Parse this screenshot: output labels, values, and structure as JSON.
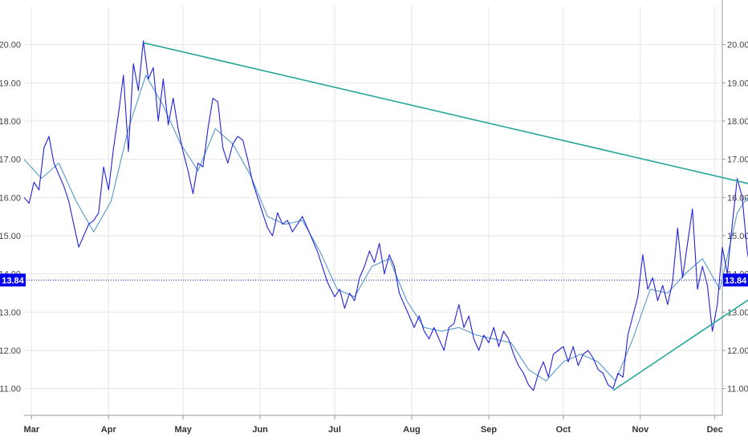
{
  "chart_data": {
    "type": "line",
    "title": "",
    "xlabel": "",
    "ylabel": "",
    "ylim": [
      10.3,
      21.0
    ],
    "xlim": [
      "2019-02-26",
      "2019-12-04"
    ],
    "grid": true,
    "y_ticks": [
      "11.00",
      "12.00",
      "13.00",
      "14.00",
      "15.00",
      "16.00",
      "17.00",
      "18.00",
      "19.00",
      "20.00"
    ],
    "x_ticks": [
      {
        "label": "Mar",
        "date": "2019-03-01"
      },
      {
        "label": "Apr",
        "date": "2019-04-01"
      },
      {
        "label": "May",
        "date": "2019-05-01"
      },
      {
        "label": "Jun",
        "date": "2019-06-01"
      },
      {
        "label": "Jul",
        "date": "2019-07-01"
      },
      {
        "label": "Aug",
        "date": "2019-08-01"
      },
      {
        "label": "Sep",
        "date": "2019-09-01"
      },
      {
        "label": "Oct",
        "date": "2019-10-01"
      },
      {
        "label": "Nov",
        "date": "2019-11-01"
      },
      {
        "label": "Dec",
        "date": "2019-12-01"
      }
    ],
    "current_value": {
      "label": "13.84",
      "value": 13.84,
      "color": "#0000ee"
    },
    "colors": {
      "price": "#2222dd",
      "moving_average": "#5599cc",
      "trendline": "#26a69a",
      "grid": "#e6e6e6"
    },
    "series": [
      {
        "key": "price",
        "points": [
          [
            "2019-02-26",
            16.0
          ],
          [
            "2019-02-28",
            15.85
          ],
          [
            "2019-03-02",
            16.4
          ],
          [
            "2019-03-04",
            16.2
          ],
          [
            "2019-03-06",
            17.3
          ],
          [
            "2019-03-08",
            17.6
          ],
          [
            "2019-03-10",
            16.9
          ],
          [
            "2019-03-12",
            16.6
          ],
          [
            "2019-03-14",
            16.3
          ],
          [
            "2019-03-16",
            15.9
          ],
          [
            "2019-03-18",
            15.3
          ],
          [
            "2019-03-20",
            14.7
          ],
          [
            "2019-03-22",
            15.0
          ],
          [
            "2019-03-24",
            15.3
          ],
          [
            "2019-03-26",
            15.4
          ],
          [
            "2019-03-28",
            15.6
          ],
          [
            "2019-03-30",
            16.8
          ],
          [
            "2019-04-01",
            16.2
          ],
          [
            "2019-04-03",
            17.3
          ],
          [
            "2019-04-05",
            18.2
          ],
          [
            "2019-04-07",
            19.2
          ],
          [
            "2019-04-09",
            17.2
          ],
          [
            "2019-04-11",
            19.5
          ],
          [
            "2019-04-13",
            18.8
          ],
          [
            "2019-04-15",
            20.1
          ],
          [
            "2019-04-17",
            19.1
          ],
          [
            "2019-04-19",
            19.4
          ],
          [
            "2019-04-21",
            18.0
          ],
          [
            "2019-04-23",
            19.1
          ],
          [
            "2019-04-25",
            17.9
          ],
          [
            "2019-04-27",
            18.6
          ],
          [
            "2019-04-29",
            17.8
          ],
          [
            "2019-05-01",
            17.2
          ],
          [
            "2019-05-03",
            16.7
          ],
          [
            "2019-05-05",
            16.1
          ],
          [
            "2019-05-07",
            16.9
          ],
          [
            "2019-05-09",
            16.8
          ],
          [
            "2019-05-11",
            17.8
          ],
          [
            "2019-05-13",
            18.6
          ],
          [
            "2019-05-15",
            18.5
          ],
          [
            "2019-05-17",
            17.3
          ],
          [
            "2019-05-19",
            16.9
          ],
          [
            "2019-05-21",
            17.4
          ],
          [
            "2019-05-23",
            17.6
          ],
          [
            "2019-05-25",
            17.5
          ],
          [
            "2019-05-27",
            17.0
          ],
          [
            "2019-05-29",
            16.4
          ],
          [
            "2019-05-31",
            16.0
          ],
          [
            "2019-06-02",
            15.6
          ],
          [
            "2019-06-04",
            15.2
          ],
          [
            "2019-06-06",
            15.0
          ],
          [
            "2019-06-08",
            15.6
          ],
          [
            "2019-06-10",
            15.3
          ],
          [
            "2019-06-12",
            15.4
          ],
          [
            "2019-06-14",
            15.1
          ],
          [
            "2019-06-16",
            15.3
          ],
          [
            "2019-06-18",
            15.5
          ],
          [
            "2019-06-20",
            15.2
          ],
          [
            "2019-06-22",
            14.9
          ],
          [
            "2019-06-24",
            14.6
          ],
          [
            "2019-06-26",
            14.2
          ],
          [
            "2019-06-28",
            13.8
          ],
          [
            "2019-07-01",
            13.4
          ],
          [
            "2019-07-03",
            13.6
          ],
          [
            "2019-07-05",
            13.1
          ],
          [
            "2019-07-07",
            13.5
          ],
          [
            "2019-07-09",
            13.3
          ],
          [
            "2019-07-11",
            13.9
          ],
          [
            "2019-07-13",
            14.2
          ],
          [
            "2019-07-15",
            14.6
          ],
          [
            "2019-07-17",
            14.3
          ],
          [
            "2019-07-19",
            14.8
          ],
          [
            "2019-07-21",
            14.0
          ],
          [
            "2019-07-23",
            14.5
          ],
          [
            "2019-07-25",
            14.2
          ],
          [
            "2019-07-27",
            13.5
          ],
          [
            "2019-07-29",
            13.2
          ],
          [
            "2019-07-31",
            12.9
          ],
          [
            "2019-08-02",
            12.6
          ],
          [
            "2019-08-04",
            12.9
          ],
          [
            "2019-08-06",
            12.5
          ],
          [
            "2019-08-08",
            12.3
          ],
          [
            "2019-08-10",
            12.6
          ],
          [
            "2019-08-12",
            12.3
          ],
          [
            "2019-08-14",
            12.0
          ],
          [
            "2019-08-16",
            12.6
          ],
          [
            "2019-08-18",
            12.7
          ],
          [
            "2019-08-20",
            13.2
          ],
          [
            "2019-08-22",
            12.6
          ],
          [
            "2019-08-24",
            12.9
          ],
          [
            "2019-08-26",
            12.3
          ],
          [
            "2019-08-28",
            12.0
          ],
          [
            "2019-08-30",
            12.4
          ],
          [
            "2019-09-01",
            12.2
          ],
          [
            "2019-09-03",
            12.6
          ],
          [
            "2019-09-05",
            12.1
          ],
          [
            "2019-09-07",
            12.5
          ],
          [
            "2019-09-09",
            12.3
          ],
          [
            "2019-09-11",
            11.9
          ],
          [
            "2019-09-13",
            11.6
          ],
          [
            "2019-09-15",
            11.4
          ],
          [
            "2019-09-17",
            11.1
          ],
          [
            "2019-09-19",
            10.95
          ],
          [
            "2019-09-21",
            11.4
          ],
          [
            "2019-09-23",
            11.7
          ],
          [
            "2019-09-25",
            11.3
          ],
          [
            "2019-09-27",
            11.9
          ],
          [
            "2019-09-29",
            12.0
          ],
          [
            "2019-10-01",
            12.1
          ],
          [
            "2019-10-03",
            11.7
          ],
          [
            "2019-10-05",
            12.1
          ],
          [
            "2019-10-07",
            11.6
          ],
          [
            "2019-10-09",
            11.9
          ],
          [
            "2019-10-11",
            12.0
          ],
          [
            "2019-10-13",
            11.8
          ],
          [
            "2019-10-15",
            11.5
          ],
          [
            "2019-10-17",
            11.4
          ],
          [
            "2019-10-19",
            11.1
          ],
          [
            "2019-10-21",
            11.0
          ],
          [
            "2019-10-23",
            11.4
          ],
          [
            "2019-10-25",
            11.3
          ],
          [
            "2019-10-27",
            12.4
          ],
          [
            "2019-10-29",
            12.9
          ],
          [
            "2019-10-31",
            13.4
          ],
          [
            "2019-11-02",
            14.5
          ],
          [
            "2019-11-04",
            13.6
          ],
          [
            "2019-11-06",
            13.9
          ],
          [
            "2019-11-08",
            13.3
          ],
          [
            "2019-11-10",
            13.7
          ],
          [
            "2019-11-12",
            13.2
          ],
          [
            "2019-11-14",
            13.8
          ],
          [
            "2019-11-16",
            15.2
          ],
          [
            "2019-11-18",
            13.9
          ],
          [
            "2019-11-20",
            14.8
          ],
          [
            "2019-11-22",
            15.7
          ],
          [
            "2019-11-24",
            13.6
          ],
          [
            "2019-11-26",
            14.2
          ],
          [
            "2019-11-28",
            13.7
          ],
          [
            "2019-11-30",
            12.5
          ],
          [
            "2019-12-02",
            13.2
          ],
          [
            "2019-12-04",
            14.7
          ],
          [
            "2019-12-06",
            14.0
          ],
          [
            "2019-12-08",
            15.3
          ],
          [
            "2019-12-10",
            16.5
          ],
          [
            "2019-12-12",
            16.0
          ],
          [
            "2019-12-14",
            14.6
          ],
          [
            "2019-12-16",
            13.84
          ]
        ]
      },
      {
        "key": "moving_average",
        "points": [
          [
            "2019-02-26",
            17.0
          ],
          [
            "2019-03-05",
            16.5
          ],
          [
            "2019-03-12",
            16.9
          ],
          [
            "2019-03-19",
            15.9
          ],
          [
            "2019-03-26",
            15.1
          ],
          [
            "2019-04-02",
            15.9
          ],
          [
            "2019-04-09",
            17.8
          ],
          [
            "2019-04-16",
            19.2
          ],
          [
            "2019-04-23",
            18.4
          ],
          [
            "2019-04-30",
            17.4
          ],
          [
            "2019-05-07",
            16.7
          ],
          [
            "2019-05-14",
            17.8
          ],
          [
            "2019-05-21",
            17.4
          ],
          [
            "2019-05-28",
            16.6
          ],
          [
            "2019-06-04",
            15.5
          ],
          [
            "2019-06-11",
            15.3
          ],
          [
            "2019-06-18",
            15.4
          ],
          [
            "2019-06-25",
            14.6
          ],
          [
            "2019-07-02",
            13.6
          ],
          [
            "2019-07-09",
            13.4
          ],
          [
            "2019-07-16",
            14.2
          ],
          [
            "2019-07-23",
            14.4
          ],
          [
            "2019-07-30",
            13.3
          ],
          [
            "2019-08-06",
            12.6
          ],
          [
            "2019-08-13",
            12.5
          ],
          [
            "2019-08-20",
            12.6
          ],
          [
            "2019-08-27",
            12.4
          ],
          [
            "2019-09-03",
            12.3
          ],
          [
            "2019-09-10",
            12.2
          ],
          [
            "2019-09-17",
            11.5
          ],
          [
            "2019-09-24",
            11.2
          ],
          [
            "2019-10-01",
            11.7
          ],
          [
            "2019-10-08",
            11.9
          ],
          [
            "2019-10-15",
            11.7
          ],
          [
            "2019-10-22",
            11.2
          ],
          [
            "2019-10-29",
            12.3
          ],
          [
            "2019-11-05",
            13.6
          ],
          [
            "2019-11-12",
            13.5
          ],
          [
            "2019-11-19",
            14.0
          ],
          [
            "2019-11-26",
            14.4
          ],
          [
            "2019-12-03",
            13.6
          ],
          [
            "2019-12-10",
            15.6
          ],
          [
            "2019-12-14",
            16.0
          ],
          [
            "2019-12-18",
            15.0
          ]
        ]
      },
      {
        "key": "trendline_upper",
        "points": [
          [
            "2019-04-15",
            20.05
          ],
          [
            "2019-12-22",
            16.25
          ]
        ]
      },
      {
        "key": "trendline_lower",
        "points": [
          [
            "2019-10-21",
            10.95
          ],
          [
            "2019-12-22",
            13.65
          ]
        ]
      }
    ]
  }
}
